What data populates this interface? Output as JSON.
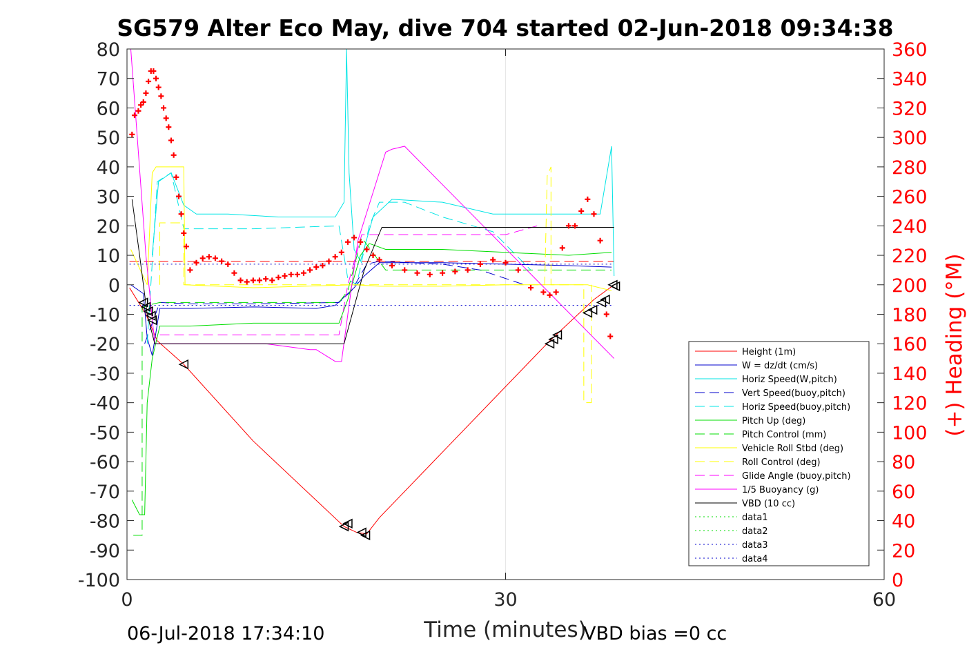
{
  "chart_data": {
    "type": "line",
    "title": "SG579 Alter Eco May, dive 704 started 02-Jun-2018 09:34:38",
    "xlabel": "Time (minutes)",
    "ylabel_right": "(+) Heading (°M)",
    "xlim": [
      0,
      60
    ],
    "ylim": [
      -100,
      80
    ],
    "ylim_right": [
      0,
      360
    ],
    "x_ticks": [
      "0",
      "30",
      "60"
    ],
    "y_ticks": [
      "80",
      "70",
      "60",
      "50",
      "40",
      "30",
      "20",
      "10",
      "0",
      "-10",
      "-20",
      "-30",
      "-40",
      "-50",
      "-60",
      "-70",
      "-80",
      "-90",
      "-100"
    ],
    "y_ticks_right": [
      "360",
      "340",
      "320",
      "300",
      "280",
      "260",
      "240",
      "220",
      "200",
      "180",
      "160",
      "140",
      "120",
      "100",
      "80",
      "60",
      "40",
      "20",
      "0"
    ],
    "grid": "x only at 30",
    "legend_position": "bottom-right",
    "series": [
      {
        "name": "Height (1m)",
        "color": "#ff0000",
        "style": "solid",
        "x": [
          0.2,
          1.5,
          2.4,
          4.5,
          10,
          17.2,
          18.2,
          19.0,
          20.0,
          33.5,
          37.0,
          38.6
        ],
        "y": [
          -1,
          -10,
          -19,
          -27,
          -53,
          -82,
          -84,
          -84.5,
          -79,
          -19,
          -5,
          0
        ]
      },
      {
        "name": "W = dz/dt (cm/s)",
        "color": "#0000cc",
        "style": "solid",
        "x": [
          0.3,
          1.3,
          1.6,
          2.0,
          2.6,
          5,
          10,
          15,
          16.5,
          17,
          18,
          18.8,
          20,
          25,
          30,
          35,
          38.4
        ],
        "y": [
          0,
          -3,
          -18,
          -24,
          -8,
          -8,
          -7.5,
          -8,
          -7,
          -5,
          -1,
          3,
          7.5,
          7.5,
          7,
          6.5,
          6
        ]
      },
      {
        "name": "Horiz Speed(W,pitch)",
        "color": "#00e5e5",
        "style": "solid",
        "x": [
          2.0,
          2.5,
          3.5,
          4.5,
          5.5,
          8,
          12,
          16.5,
          17.2,
          17.4,
          17.6,
          18,
          18.5,
          19.5,
          21,
          25,
          29,
          32,
          35,
          37.5,
          38.4,
          38.6
        ],
        "y": [
          10,
          35,
          38,
          27,
          24,
          24,
          23,
          23,
          28,
          80,
          38,
          12,
          8,
          23,
          29,
          28,
          24,
          24,
          24,
          24,
          47,
          3
        ]
      },
      {
        "name": "Vert Speed(buoy,pitch)",
        "color": "#0000cc",
        "style": "dashed",
        "x": [
          1.4,
          2.6,
          5,
          10,
          16.8,
          17.8,
          19,
          20,
          25,
          28,
          31.5
        ],
        "y": [
          -20,
          -6,
          -6.5,
          -6.5,
          -6,
          -2,
          7,
          8,
          7,
          5,
          0
        ]
      },
      {
        "name": "Horiz Speed(buoy,pitch)",
        "color": "#00e5e5",
        "style": "dashed",
        "x": [
          1.6,
          2.4,
          3.5,
          4.5,
          5.5,
          10,
          16.8,
          17.5,
          18.2,
          19.2,
          20,
          22,
          25,
          29,
          32
        ],
        "y": [
          -20,
          35,
          38,
          19,
          19,
          19,
          20,
          2,
          0,
          20,
          28,
          28,
          23,
          18,
          5
        ]
      },
      {
        "name": "Pitch Up (deg)",
        "color": "#00dd00",
        "style": "solid",
        "x": [
          0.4,
          1.0,
          1.4,
          1.6,
          2.0,
          2.6,
          5,
          10,
          16.8,
          17.5,
          18.5,
          19.2,
          20.5,
          25,
          30,
          35,
          38.4
        ],
        "y": [
          -73,
          -78,
          -78,
          -40,
          -25,
          -14,
          -14,
          -13,
          -13,
          -5,
          10,
          14,
          12,
          12,
          11,
          10,
          11
        ]
      },
      {
        "name": "Pitch Control (mm)",
        "color": "#00dd00",
        "style": "dashed",
        "x": [
          0.5,
          1.2,
          1.2,
          1.6,
          2.6,
          5,
          10,
          16.8,
          17.5,
          18.6,
          20.5,
          25,
          30,
          35,
          38.4
        ],
        "y": [
          -85,
          -85,
          -8,
          -7,
          -6,
          -6,
          -6,
          -6,
          -2,
          16,
          5,
          5,
          5,
          5,
          5
        ]
      },
      {
        "name": "Vehicle Roll Stbd (deg)",
        "color": "#ffff00",
        "style": "solid",
        "x": [
          0.3,
          1.6,
          2.0,
          2.3,
          4.5,
          4.6,
          10,
          18,
          20,
          25,
          30,
          33.0,
          33.4,
          34.5,
          35.5,
          36.5,
          38.4
        ],
        "y": [
          12,
          0,
          38,
          40,
          40,
          0,
          -1,
          0,
          -0.5,
          -0.5,
          0,
          0,
          0,
          0,
          0,
          0,
          -2
        ]
      },
      {
        "name": "Roll Control (deg)",
        "color": "#ffff00",
        "style": "dashed",
        "x": [
          2.6,
          2.6,
          4.5,
          4.5,
          33.1,
          33.3,
          33.6,
          33.6,
          36.2,
          36.2,
          36.8,
          36.8
        ],
        "y": [
          0,
          21,
          21,
          0,
          0,
          37,
          40,
          0,
          0,
          -40,
          -40,
          0
        ]
      },
      {
        "name": "Glide Angle (buoy,pitch)",
        "color": "#ff00ff",
        "style": "dashed",
        "x": [
          2.6,
          5,
          10,
          16.8,
          17.5,
          18.6,
          20,
          25,
          30,
          32.5
        ],
        "y": [
          -17,
          -17,
          -17,
          -17,
          0,
          17,
          17,
          17,
          17,
          20
        ]
      },
      {
        "name": "1/5 Buoyancy (g)",
        "color": "#ff00ff",
        "style": "solid",
        "x": [
          0.3,
          1.5,
          2.2,
          4.5,
          11,
          14.5,
          15,
          16.5,
          17,
          17.5,
          18.3,
          20.5,
          21,
          22,
          38.6
        ],
        "y": [
          80,
          10,
          -20,
          -20,
          -20,
          -22,
          -22,
          -26,
          -26,
          -10,
          15,
          45,
          46,
          47,
          -25
        ]
      },
      {
        "name": "VBD (10 cc)",
        "color": "#000000",
        "style": "solid",
        "x": [
          0.4,
          1.0,
          1.6,
          2.2,
          17.2,
          18.8,
          20.2,
          38.6
        ],
        "y": [
          29,
          10,
          -10,
          -20,
          -20,
          5,
          19.5,
          19.5
        ]
      },
      {
        "name": "data1",
        "color": "#00dd00",
        "style": "dotted",
        "x": [],
        "y": []
      },
      {
        "name": "data2",
        "color": "#00dd00",
        "style": "dotted",
        "x": [],
        "y": []
      },
      {
        "name": "data3",
        "color": "#0000cc",
        "style": "dotted",
        "x": [
          0.2,
          38.6
        ],
        "y": [
          7,
          7
        ]
      },
      {
        "name": "data4",
        "color": "#0000cc",
        "style": "dotted",
        "x": [
          0.2,
          38.6
        ],
        "y": [
          -7,
          -7
        ]
      }
    ],
    "reference_lines": [
      {
        "color": "#ff0000",
        "style": "dashed",
        "x": [
          0.2,
          38.6
        ],
        "y": [
          8,
          8
        ]
      }
    ],
    "heading_markers": {
      "color": "#ff0000",
      "axis": "right",
      "x": [
        0.4,
        0.6,
        0.9,
        1.1,
        1.3,
        1.5,
        1.7,
        1.9,
        2.1,
        2.3,
        2.5,
        2.7,
        2.9,
        3.1,
        3.3,
        3.5,
        3.7,
        3.9,
        4.1,
        4.3,
        4.5,
        4.7,
        5,
        5.5,
        6,
        6.5,
        7,
        7.5,
        8,
        8.5,
        9,
        9.5,
        10,
        10.5,
        11,
        11.5,
        12,
        12.5,
        13,
        13.5,
        14,
        14.5,
        15,
        15.5,
        16,
        16.5,
        17,
        17.5,
        18,
        18.5,
        19,
        19.5,
        20,
        21,
        22,
        23,
        24,
        25,
        26,
        27,
        28,
        29,
        30,
        31,
        32,
        33,
        33.5,
        34,
        34.5,
        35,
        35.5,
        36,
        36.5,
        37,
        37.5,
        38,
        38.3
      ],
      "y": [
        302,
        315,
        318,
        322,
        324,
        330,
        338,
        345,
        345,
        340,
        334,
        328,
        320,
        313,
        307,
        298,
        288,
        273,
        260,
        248,
        235,
        226,
        210,
        215,
        218,
        219,
        218,
        216,
        214,
        208,
        203,
        202,
        203,
        203,
        204,
        203,
        205,
        206,
        207,
        207,
        208,
        210,
        212,
        213,
        216,
        219,
        222,
        229,
        232,
        229,
        224,
        220,
        217,
        213,
        210,
        208,
        207,
        208,
        209,
        210,
        214,
        217,
        215,
        210,
        198,
        195,
        193,
        195,
        225,
        240,
        240,
        250,
        258,
        248,
        230,
        180,
        165
      ]
    },
    "triangle_markers": {
      "x": [
        1.3,
        1.5,
        1.7,
        1.9,
        2.0,
        4.5,
        17.2,
        17.5,
        18.6,
        18.9,
        33.5,
        33.8,
        34.1,
        36.5,
        36.9,
        37.6,
        37.9,
        38.5,
        38.7
      ],
      "y": [
        -6,
        -7.5,
        -9,
        -10.5,
        -12,
        -27,
        -82,
        -81,
        -84,
        -85,
        -20,
        -18.5,
        -17,
        -9.5,
        -8.5,
        -6,
        -5,
        0,
        -0.5
      ]
    },
    "annotations": [
      "06-Jul-2018 17:34:10",
      "VBD bias =0 cc"
    ]
  }
}
